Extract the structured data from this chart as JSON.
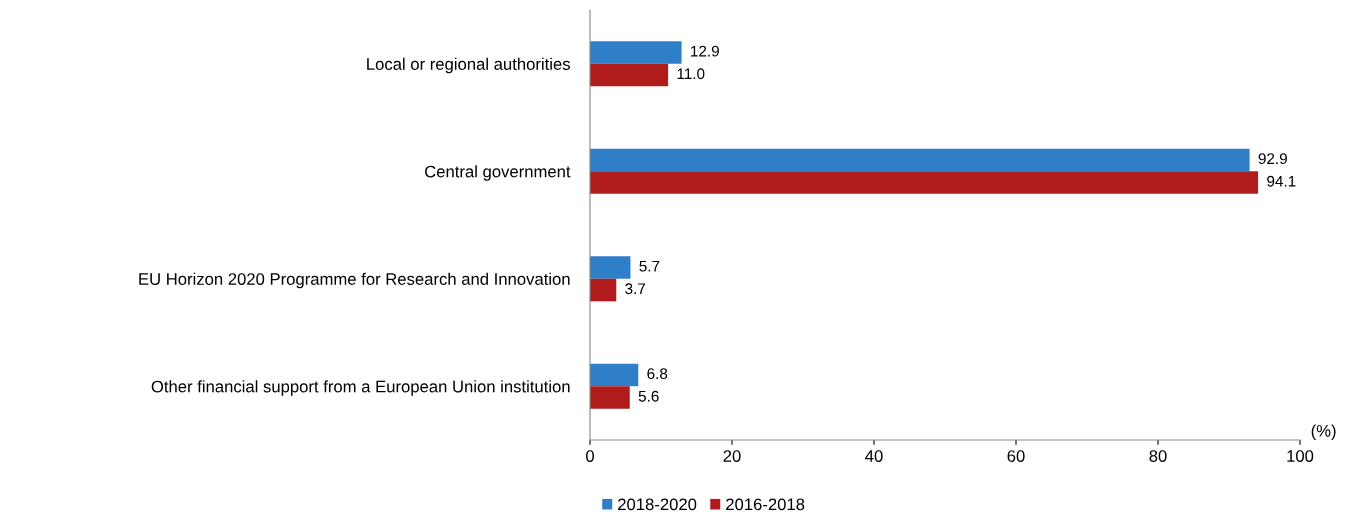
{
  "chart_data": {
    "type": "bar",
    "orientation": "horizontal",
    "xlabel": "(%)",
    "categories": [
      "Local or regional authorities",
      "Central government",
      "EU Horizon 2020 Programme for Research and Innovation",
      "Other financial support from a European Union institution"
    ],
    "series": [
      {
        "name": "2018-2020",
        "color": "#2e7fc8",
        "values": [
          12.9,
          92.9,
          5.7,
          6.8
        ],
        "value_labels": [
          "12.9",
          "92.9",
          "5.7",
          "6.8"
        ]
      },
      {
        "name": "2016-2018",
        "color": "#b01c1c",
        "values": [
          11.0,
          94.1,
          3.7,
          5.6
        ],
        "value_labels": [
          "11.0",
          "94.1",
          "3.7",
          "5.6"
        ]
      }
    ],
    "xlim": [
      0,
      100
    ],
    "xticks": [
      0,
      20,
      40,
      60,
      80,
      100
    ],
    "grid": false,
    "legend": "bottom"
  }
}
